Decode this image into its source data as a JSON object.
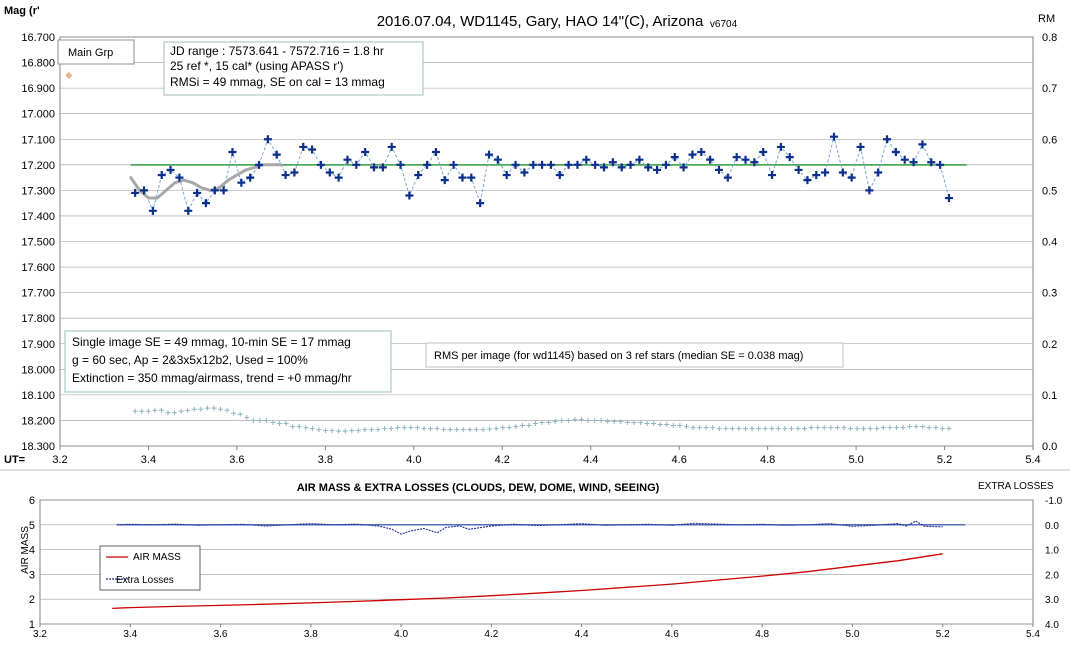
{
  "chart_data": [
    {
      "type": "scatter",
      "title": "2016.07.04,  WD1145, Gary, HAO  14\"(C), Arizona",
      "version": "v6704",
      "ylabel": "Mag (r'",
      "y2label": "RM",
      "xlabel": "UT=",
      "xlim": [
        3.2,
        5.4
      ],
      "ylim": [
        16.7,
        18.3
      ],
      "ylim_inverted": true,
      "y2lim": [
        0.0,
        0.8
      ],
      "x_ticks": [
        "3.2",
        "3.4",
        "3.6",
        "3.8",
        "4.0",
        "4.2",
        "4.4",
        "4.6",
        "4.8",
        "5.0",
        "5.2",
        "5.4"
      ],
      "y_ticks": [
        "16.700",
        "16.800",
        "16.900",
        "17.000",
        "17.100",
        "17.200",
        "17.300",
        "17.400",
        "17.500",
        "17.600",
        "17.700",
        "17.800",
        "17.900",
        "18.000",
        "18.100",
        "18.200",
        "18.300"
      ],
      "y2_ticks": [
        "0.8",
        "0.7",
        "0.6",
        "0.5",
        "0.4",
        "0.3",
        "0.2",
        "0.1",
        "0.0"
      ],
      "main_group_label": "Main Grp",
      "info_box": [
        "JD range  : 7573.641 - 7572.716  = 1.8 hr",
        "  25 ref *, 15 cal* (using APASS r')",
        "RMSi = 49 mmag, SE on cal = 13 mmag"
      ],
      "summary_box": [
        "Single image SE = 49 mmag, 10-min SE = 17 mmag",
        "g = 60 sec, Ap = 2&3x5x12b2, Used = 100%",
        "Extinction = 350 mmag/airmass, trend = +0 mmag/hr"
      ],
      "rms_note": "RMS per image (for wd1145) based on 3 ref stars (median SE = 0.038 mag)",
      "reference_level": 17.2,
      "reference_range": [
        3.36,
        5.25
      ],
      "main_grp_marker": {
        "x": 3.22,
        "y": 16.85
      },
      "series": [
        {
          "values": [
            [
              3.37,
              17.31
            ],
            [
              3.39,
              17.3
            ],
            [
              3.41,
              17.38
            ],
            [
              3.43,
              17.24
            ],
            [
              3.45,
              17.22
            ],
            [
              3.47,
              17.25
            ],
            [
              3.49,
              17.38
            ],
            [
              3.51,
              17.31
            ],
            [
              3.53,
              17.35
            ],
            [
              3.55,
              17.3
            ],
            [
              3.57,
              17.3
            ],
            [
              3.59,
              17.15
            ],
            [
              3.61,
              17.27
            ],
            [
              3.63,
              17.25
            ],
            [
              3.65,
              17.2
            ],
            [
              3.67,
              17.1
            ],
            [
              3.69,
              17.16
            ],
            [
              3.71,
              17.24
            ],
            [
              3.73,
              17.23
            ],
            [
              3.75,
              17.13
            ],
            [
              3.77,
              17.14
            ],
            [
              3.79,
              17.2
            ],
            [
              3.81,
              17.23
            ],
            [
              3.83,
              17.25
            ],
            [
              3.85,
              17.18
            ],
            [
              3.87,
              17.2
            ],
            [
              3.89,
              17.15
            ],
            [
              3.91,
              17.21
            ],
            [
              3.93,
              17.21
            ],
            [
              3.95,
              17.13
            ],
            [
              3.97,
              17.2
            ],
            [
              3.99,
              17.32
            ],
            [
              4.01,
              17.24
            ],
            [
              4.03,
              17.2
            ],
            [
              4.05,
              17.15
            ],
            [
              4.07,
              17.26
            ],
            [
              4.09,
              17.2
            ],
            [
              4.11,
              17.25
            ],
            [
              4.13,
              17.25
            ],
            [
              4.15,
              17.35
            ],
            [
              4.17,
              17.16
            ],
            [
              4.19,
              17.18
            ],
            [
              4.21,
              17.24
            ],
            [
              4.23,
              17.2
            ],
            [
              4.25,
              17.23
            ],
            [
              4.27,
              17.2
            ],
            [
              4.29,
              17.2
            ],
            [
              4.31,
              17.2
            ],
            [
              4.33,
              17.24
            ],
            [
              4.35,
              17.2
            ],
            [
              4.37,
              17.2
            ],
            [
              4.39,
              17.18
            ],
            [
              4.41,
              17.2
            ],
            [
              4.43,
              17.21
            ],
            [
              4.45,
              17.19
            ],
            [
              4.47,
              17.21
            ],
            [
              4.49,
              17.2
            ],
            [
              4.51,
              17.18
            ],
            [
              4.53,
              17.21
            ],
            [
              4.55,
              17.22
            ],
            [
              4.57,
              17.2
            ],
            [
              4.59,
              17.17
            ],
            [
              4.61,
              17.21
            ],
            [
              4.63,
              17.16
            ],
            [
              4.65,
              17.15
            ],
            [
              4.67,
              17.18
            ],
            [
              4.69,
              17.22
            ],
            [
              4.71,
              17.25
            ],
            [
              4.73,
              17.17
            ],
            [
              4.75,
              17.18
            ],
            [
              4.77,
              17.19
            ],
            [
              4.79,
              17.15
            ],
            [
              4.81,
              17.24
            ],
            [
              4.83,
              17.13
            ],
            [
              4.85,
              17.17
            ],
            [
              4.87,
              17.22
            ],
            [
              4.89,
              17.26
            ],
            [
              4.91,
              17.24
            ],
            [
              4.93,
              17.23
            ],
            [
              4.95,
              17.09
            ],
            [
              4.97,
              17.23
            ],
            [
              4.99,
              17.25
            ],
            [
              5.01,
              17.13
            ],
            [
              5.03,
              17.3
            ],
            [
              5.05,
              17.23
            ],
            [
              5.07,
              17.1
            ],
            [
              5.09,
              17.15
            ],
            [
              5.11,
              17.18
            ],
            [
              5.13,
              17.19
            ],
            [
              5.15,
              17.12
            ],
            [
              5.17,
              17.19
            ],
            [
              5.19,
              17.2
            ],
            [
              5.21,
              17.33
            ]
          ]
        },
        {
          "smooth_trend": [
            [
              3.36,
              17.25
            ],
            [
              3.38,
              17.3
            ],
            [
              3.4,
              17.33
            ],
            [
              3.42,
              17.33
            ],
            [
              3.44,
              17.3
            ],
            [
              3.46,
              17.27
            ],
            [
              3.48,
              17.26
            ],
            [
              3.5,
              17.27
            ],
            [
              3.52,
              17.29
            ],
            [
              3.54,
              17.3
            ],
            [
              3.56,
              17.29
            ],
            [
              3.58,
              17.26
            ],
            [
              3.6,
              17.24
            ],
            [
              3.62,
              17.22
            ],
            [
              3.64,
              17.21
            ],
            [
              3.66,
              17.2
            ],
            [
              3.7,
              17.2
            ]
          ]
        }
      ],
      "rm_values": [
        0.068,
        0.068,
        0.068,
        0.07,
        0.07,
        0.065,
        0.065,
        0.068,
        0.07,
        0.072,
        0.072,
        0.074,
        0.074,
        0.072,
        0.07,
        0.064,
        0.062,
        0.056,
        0.05,
        0.05,
        0.05,
        0.046,
        0.044,
        0.044,
        0.038,
        0.038,
        0.036,
        0.034,
        0.032,
        0.03,
        0.03,
        0.029,
        0.029,
        0.03,
        0.03,
        0.032,
        0.032,
        0.032,
        0.034,
        0.034,
        0.036,
        0.036,
        0.036,
        0.036,
        0.034,
        0.034,
        0.034,
        0.032,
        0.032,
        0.032,
        0.032,
        0.032,
        0.032,
        0.032,
        0.033,
        0.034,
        0.036,
        0.036,
        0.038,
        0.04,
        0.04,
        0.044,
        0.046,
        0.046,
        0.048,
        0.05,
        0.05,
        0.052,
        0.052,
        0.05,
        0.05,
        0.05,
        0.048,
        0.048,
        0.048,
        0.046,
        0.046,
        0.046,
        0.044,
        0.044,
        0.042,
        0.042,
        0.04,
        0.04,
        0.038,
        0.036,
        0.036,
        0.036,
        0.036,
        0.034,
        0.034,
        0.034,
        0.034,
        0.034,
        0.034,
        0.034,
        0.034,
        0.034,
        0.034,
        0.034,
        0.034,
        0.034,
        0.034,
        0.036,
        0.036,
        0.036,
        0.036,
        0.036,
        0.036,
        0.034,
        0.034,
        0.034,
        0.034,
        0.034,
        0.036,
        0.036,
        0.036,
        0.036,
        0.038,
        0.038,
        0.038,
        0.036,
        0.036,
        0.034,
        0.034
      ]
    },
    {
      "type": "line",
      "title": "AIR MASS & EXTRA LOSSES (CLOUDS, DEW, DOME, WIND, SEEING)",
      "ylabel": "AIR MASS",
      "y2label": "EXTRA LOSSES",
      "xlim": [
        3.2,
        5.4
      ],
      "ylim": [
        1,
        6
      ],
      "y2lim": [
        -1.0,
        4.0
      ],
      "y2_inverted": true,
      "x_ticks": [
        "3.2",
        "3.4",
        "3.6",
        "3.8",
        "4.0",
        "4.2",
        "4.4",
        "4.6",
        "4.8",
        "5.0",
        "5.2",
        "5.4"
      ],
      "y_ticks": [
        "6",
        "5",
        "4",
        "3",
        "2",
        "1"
      ],
      "y2_ticks": [
        "-1.0",
        "0.0",
        "1.0",
        "2.0",
        "3.0",
        "4.0"
      ],
      "colors": {
        "air_mass": "#cc0000",
        "extra_losses": "#1f2f8f",
        "reference": "#1f3f9f"
      },
      "series": [
        {
          "name": "AIR MASS",
          "x": [
            3.36,
            3.4,
            3.5,
            3.6,
            3.7,
            3.8,
            3.9,
            4.0,
            4.1,
            4.2,
            4.3,
            4.4,
            4.5,
            4.6,
            4.7,
            4.8,
            4.9,
            5.0,
            5.1,
            5.2
          ],
          "values": [
            1.63,
            1.66,
            1.71,
            1.75,
            1.8,
            1.85,
            1.91,
            1.98,
            2.05,
            2.14,
            2.24,
            2.35,
            2.48,
            2.61,
            2.77,
            2.93,
            3.11,
            3.33,
            3.55,
            3.83
          ]
        },
        {
          "name": "Extra Losses",
          "x": [
            3.37,
            3.4,
            3.45,
            3.5,
            3.55,
            3.6,
            3.65,
            3.7,
            3.75,
            3.8,
            3.85,
            3.9,
            3.95,
            3.98,
            4.0,
            4.02,
            4.05,
            4.08,
            4.1,
            4.13,
            4.15,
            4.2,
            4.25,
            4.3,
            4.35,
            4.4,
            4.45,
            4.5,
            4.55,
            4.6,
            4.65,
            4.7,
            4.75,
            4.8,
            4.85,
            4.9,
            4.95,
            5.0,
            5.05,
            5.1,
            5.12,
            5.14,
            5.16,
            5.2
          ],
          "values": [
            0.0,
            -0.02,
            0.0,
            -0.03,
            0.02,
            0.0,
            -0.02,
            0.05,
            0.0,
            -0.05,
            0.0,
            -0.03,
            0.05,
            0.18,
            0.38,
            0.25,
            0.15,
            0.32,
            0.1,
            0.05,
            0.18,
            0.05,
            -0.02,
            0.03,
            0.0,
            -0.05,
            0.02,
            0.0,
            -0.02,
            0.02,
            -0.06,
            -0.03,
            0.0,
            -0.02,
            0.02,
            0.0,
            -0.05,
            0.06,
            0.02,
            -0.05,
            0.05,
            -0.15,
            0.06,
            0.08
          ]
        }
      ]
    }
  ]
}
